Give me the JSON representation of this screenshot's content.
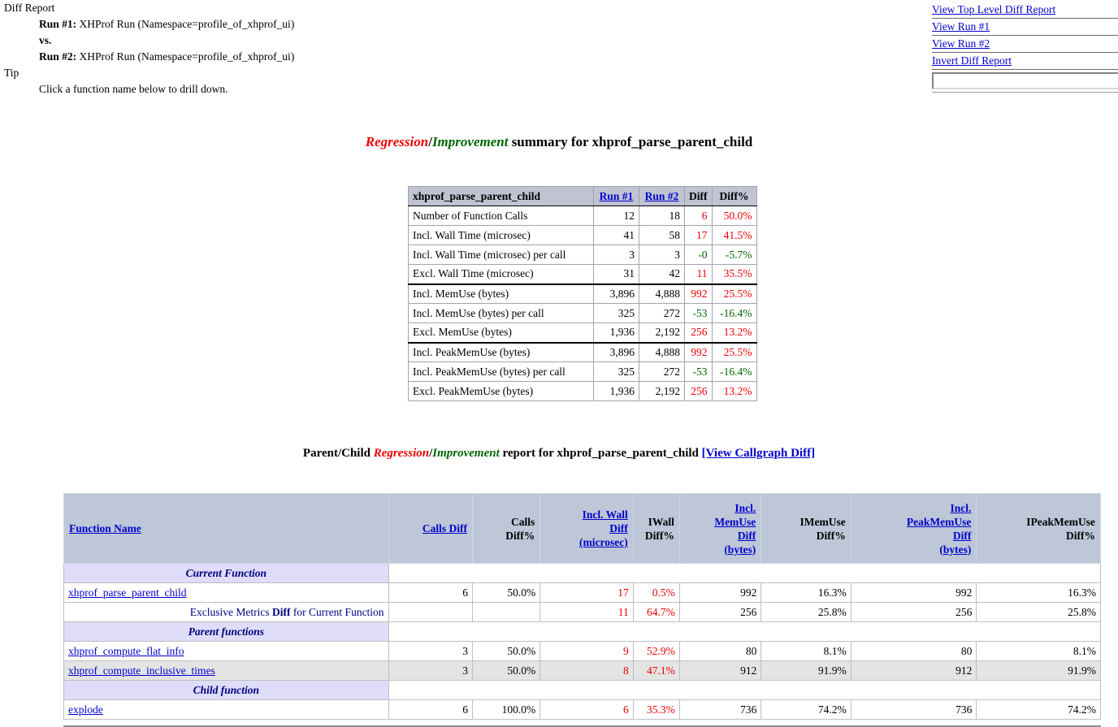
{
  "colors": {
    "red": "#ee0000",
    "green": "#006600",
    "link": "#0000cc",
    "navy": "#000080",
    "summary_header_bg": "#bfc3d2",
    "report_header_bg": "#bdc7d8",
    "section_bg": "#dedcf8",
    "shade_bg": "#e4e4e4"
  },
  "header": {
    "report_label": "Diff Report",
    "run1_label": "Run #1:",
    "run1_text": " XHProf Run (Namespace=profile_of_xhprof_ui)",
    "vs_label": "vs.",
    "run2_label": "Run #2:",
    "run2_text": " XHProf Run (Namespace=profile_of_xhprof_ui)",
    "tip_label": "Tip",
    "tip_text": "Click a function name below to drill down."
  },
  "nav": {
    "links": [
      "View Top Level Diff Report",
      "View Run #1",
      "View Run #2",
      "Invert Diff Report"
    ],
    "input_value": ""
  },
  "summary_title": {
    "regression": "Regression",
    "slash": "/",
    "improvement": "Improvement",
    "rest": " summary for xhprof_parse_parent_child"
  },
  "summary_table": {
    "header": {
      "title": "xhprof_parse_parent_child",
      "run1": "Run #1",
      "run2": "Run #2",
      "diff": "Diff",
      "diffpct": "Diff%"
    },
    "rows": [
      {
        "metric": "Number of Function Calls",
        "run1": "12",
        "run2": "18",
        "diff": "6",
        "diffpct": "50.0%",
        "color": "red"
      },
      {
        "metric": "Incl. Wall Time (microsec)",
        "run1": "41",
        "run2": "58",
        "diff": "17",
        "diffpct": "41.5%",
        "color": "red"
      },
      {
        "metric": "Incl. Wall Time (microsec) per call",
        "run1": "3",
        "run2": "3",
        "diff": "-0",
        "diffpct": "-5.7%",
        "color": "green"
      },
      {
        "metric": "Excl. Wall Time (microsec)",
        "run1": "31",
        "run2": "42",
        "diff": "11",
        "diffpct": "35.5%",
        "color": "red",
        "group_end": true
      },
      {
        "metric": "Incl. MemUse (bytes)",
        "run1": "3,896",
        "run2": "4,888",
        "diff": "992",
        "diffpct": "25.5%",
        "color": "red"
      },
      {
        "metric": "Incl. MemUse (bytes) per call",
        "run1": "325",
        "run2": "272",
        "diff": "-53",
        "diffpct": "-16.4%",
        "color": "green"
      },
      {
        "metric": "Excl. MemUse (bytes)",
        "run1": "1,936",
        "run2": "2,192",
        "diff": "256",
        "diffpct": "13.2%",
        "color": "red",
        "group_end": true
      },
      {
        "metric": "Incl. PeakMemUse (bytes)",
        "run1": "3,896",
        "run2": "4,888",
        "diff": "992",
        "diffpct": "25.5%",
        "color": "red"
      },
      {
        "metric": "Incl. PeakMemUse (bytes) per call",
        "run1": "325",
        "run2": "272",
        "diff": "-53",
        "diffpct": "-16.4%",
        "color": "green"
      },
      {
        "metric": "Excl. PeakMemUse (bytes)",
        "run1": "1,936",
        "run2": "2,192",
        "diff": "256",
        "diffpct": "13.2%",
        "color": "red"
      }
    ]
  },
  "report_title": {
    "prefix": "Parent/Child ",
    "regression": "Regression",
    "slash": "/",
    "improvement": "Improvement",
    "middle": " report for xhprof_parse_parent_child ",
    "callgraph_link": "[View Callgraph Diff]"
  },
  "report_table": {
    "headers": [
      {
        "label": "Function Name",
        "link": true,
        "align": "left"
      },
      {
        "label": "Calls Diff",
        "link": true
      },
      {
        "label": "Calls\nDiff%",
        "link": false
      },
      {
        "label": "Incl. Wall\nDiff\n(microsec)",
        "link": true
      },
      {
        "label": "IWall\nDiff%",
        "link": false
      },
      {
        "label": "Incl.\nMemUse\nDiff\n(bytes)",
        "link": true
      },
      {
        "label": "IMemUse\nDiff%",
        "link": false
      },
      {
        "label": "Incl.\nPeakMemUse\nDiff\n(bytes)",
        "link": true
      },
      {
        "label": "IPeakMemUse\nDiff%",
        "link": false
      }
    ],
    "rows": [
      {
        "type": "section",
        "label": "Current Function"
      },
      {
        "type": "data",
        "func": "xhprof_parse_parent_child",
        "values": [
          {
            "t": "6"
          },
          {
            "t": "50.0%"
          },
          {
            "t": "17",
            "c": "red"
          },
          {
            "t": "0.5%",
            "c": "red"
          },
          {
            "t": "992"
          },
          {
            "t": "16.3%"
          },
          {
            "t": "992"
          },
          {
            "t": "16.3%"
          }
        ]
      },
      {
        "type": "exclusive",
        "label_pre": "Exclusive Metrics ",
        "label_bold": "Diff",
        "label_post": " for Current Function",
        "values": [
          {
            "t": ""
          },
          {
            "t": ""
          },
          {
            "t": "11",
            "c": "red"
          },
          {
            "t": "64.7%",
            "c": "red"
          },
          {
            "t": "256"
          },
          {
            "t": "25.8%"
          },
          {
            "t": "256"
          },
          {
            "t": "25.8%"
          }
        ]
      },
      {
        "type": "section",
        "label": "Parent functions"
      },
      {
        "type": "data",
        "func": "xhprof_compute_flat_info",
        "values": [
          {
            "t": "3"
          },
          {
            "t": "50.0%"
          },
          {
            "t": "9",
            "c": "red"
          },
          {
            "t": "52.9%",
            "c": "red"
          },
          {
            "t": "80"
          },
          {
            "t": "8.1%"
          },
          {
            "t": "80"
          },
          {
            "t": "8.1%"
          }
        ]
      },
      {
        "type": "data",
        "func": "xhprof_compute_inclusive_times",
        "shade": true,
        "values": [
          {
            "t": "3"
          },
          {
            "t": "50.0%"
          },
          {
            "t": "8",
            "c": "red"
          },
          {
            "t": "47.1%",
            "c": "red"
          },
          {
            "t": "912"
          },
          {
            "t": "91.9%"
          },
          {
            "t": "912"
          },
          {
            "t": "91.9%"
          }
        ]
      },
      {
        "type": "section",
        "label": "Child function"
      },
      {
        "type": "data",
        "func": "explode",
        "values": [
          {
            "t": "6"
          },
          {
            "t": "100.0%"
          },
          {
            "t": "6",
            "c": "red"
          },
          {
            "t": "35.3%",
            "c": "red"
          },
          {
            "t": "736"
          },
          {
            "t": "74.2%"
          },
          {
            "t": "736"
          },
          {
            "t": "74.2%"
          }
        ]
      }
    ]
  }
}
